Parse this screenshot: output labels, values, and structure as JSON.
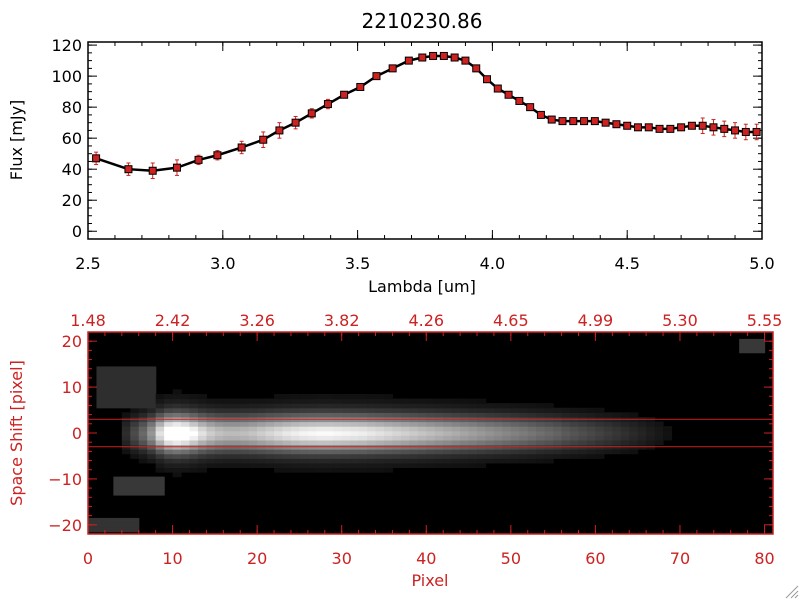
{
  "chart_data": [
    {
      "type": "line",
      "title": "2210230.86",
      "xlabel": "Lambda [um]",
      "ylabel": "Flux [mJy]",
      "xlim": [
        2.5,
        5.0
      ],
      "ylim": [
        -5,
        122
      ],
      "xticks": [
        2.5,
        3.0,
        3.5,
        4.0,
        4.5,
        5.0
      ],
      "xtick_labels": [
        "2.5",
        "3.0",
        "3.5",
        "4.0",
        "4.5",
        "5.0"
      ],
      "yticks": [
        0,
        20,
        40,
        60,
        80,
        100,
        120
      ],
      "ytick_labels": [
        "0",
        "20",
        "40",
        "60",
        "80",
        "100",
        "120"
      ],
      "line_color": "#000000",
      "marker_color": "#cc2222",
      "series": [
        {
          "name": "flux",
          "x": [
            2.53,
            2.65,
            2.74,
            2.83,
            2.91,
            2.98,
            3.07,
            3.15,
            3.21,
            3.27,
            3.33,
            3.39,
            3.45,
            3.51,
            3.57,
            3.63,
            3.69,
            3.74,
            3.78,
            3.82,
            3.86,
            3.9,
            3.94,
            3.98,
            4.02,
            4.06,
            4.1,
            4.14,
            4.18,
            4.22,
            4.26,
            4.3,
            4.34,
            4.38,
            4.42,
            4.46,
            4.5,
            4.54,
            4.58,
            4.62,
            4.66,
            4.7,
            4.74,
            4.78,
            4.82,
            4.86,
            4.9,
            4.94,
            4.98
          ],
          "y": [
            47,
            40,
            39,
            41,
            46,
            49,
            54,
            59,
            65,
            70,
            76,
            82,
            88,
            93,
            100,
            105,
            110,
            112,
            113,
            113,
            112,
            110,
            105,
            98,
            92,
            88,
            84,
            80,
            75,
            72,
            71,
            71,
            71,
            71,
            70,
            69,
            68,
            67,
            67,
            66,
            66,
            67,
            68,
            68,
            67,
            66,
            65,
            64,
            64
          ],
          "err": [
            4,
            4,
            5,
            5,
            3,
            3,
            4,
            5,
            5,
            4,
            3,
            3,
            2,
            2,
            2,
            2,
            2,
            2,
            2,
            2,
            2,
            2,
            2,
            2,
            2,
            2,
            2,
            2,
            2,
            2,
            2,
            2,
            2,
            2,
            2,
            2,
            2,
            2,
            2,
            2,
            2,
            2,
            2,
            5,
            5,
            5,
            5,
            5,
            5
          ]
        }
      ]
    },
    {
      "type": "heatmap",
      "xlabel": "Pixel",
      "ylabel": "Space Shift [pixel]",
      "xlim": [
        0,
        81
      ],
      "ylim": [
        -22,
        22
      ],
      "xticks": [
        0,
        10,
        20,
        30,
        40,
        50,
        60,
        70,
        80
      ],
      "xtick_labels": [
        "0",
        "10",
        "20",
        "30",
        "40",
        "50",
        "60",
        "70",
        "80"
      ],
      "yticks": [
        -20,
        -10,
        0,
        10,
        20
      ],
      "ytick_labels": [
        "−20",
        "−10",
        "0",
        "10",
        "20"
      ],
      "top_axis_values": [
        0,
        10,
        20,
        30,
        40,
        50,
        60,
        70,
        80
      ],
      "top_axis_labels": [
        "1.48",
        "2.42",
        "3.26",
        "3.82",
        "4.26",
        "4.65",
        "4.99",
        "5.30",
        "5.55"
      ],
      "extraction_window": [
        -3,
        3
      ],
      "axis_color": "#cc2222",
      "trace_profile": [
        0,
        0,
        0,
        0,
        0.15,
        0.25,
        0.35,
        0.5,
        0.75,
        0.95,
        1.0,
        0.95,
        0.85,
        0.75,
        0.68,
        0.64,
        0.62,
        0.62,
        0.63,
        0.65,
        0.68,
        0.71,
        0.74,
        0.77,
        0.79,
        0.81,
        0.82,
        0.83,
        0.83,
        0.82,
        0.81,
        0.8,
        0.79,
        0.77,
        0.75,
        0.73,
        0.71,
        0.69,
        0.67,
        0.65,
        0.63,
        0.61,
        0.59,
        0.57,
        0.55,
        0.53,
        0.51,
        0.49,
        0.47,
        0.45,
        0.43,
        0.41,
        0.39,
        0.37,
        0.35,
        0.33,
        0.3,
        0.28,
        0.26,
        0.24,
        0.22,
        0.2,
        0.18,
        0.16,
        0.14,
        0.12,
        0.1,
        0.08,
        0.06,
        0.04,
        0.03,
        0.02,
        0.01,
        0,
        0,
        0,
        0,
        0,
        0,
        0,
        0
      ]
    }
  ]
}
